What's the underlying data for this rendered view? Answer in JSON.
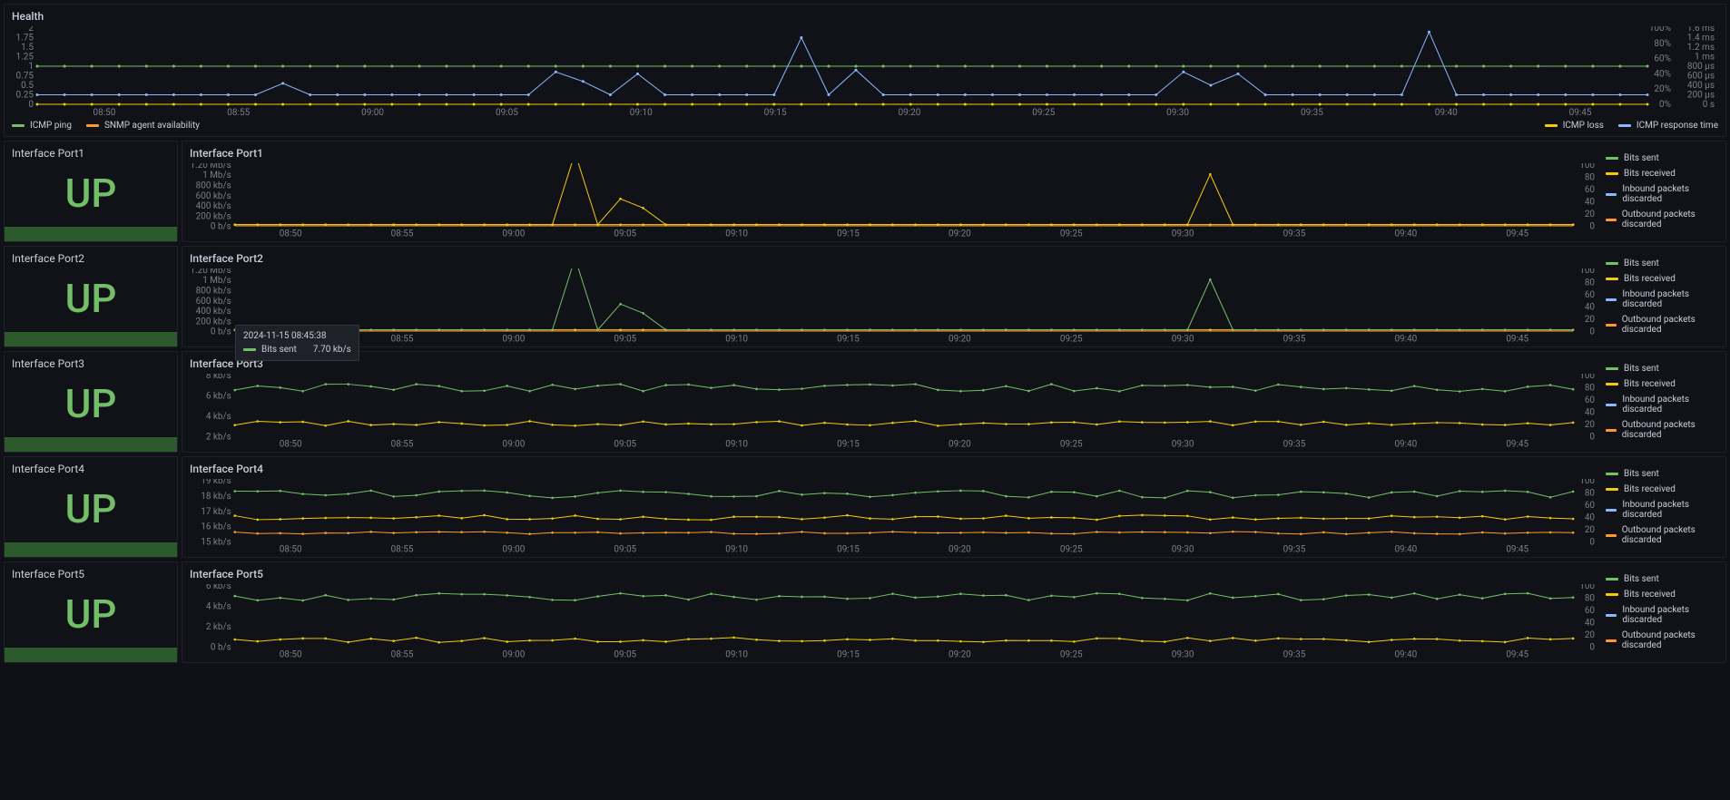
{
  "colors": {
    "bg": "#0f1116",
    "panel": "#111217",
    "grid": "#2a2d37",
    "text": "#ccccdc",
    "axis": "#7b7f8c",
    "green": "#73bf69",
    "orange": "#ff9830",
    "blue": "#8ab8ff",
    "yellow": "#f2cc0c",
    "status_bar": "#2d5a2d"
  },
  "health": {
    "title": "Health",
    "left_axis": {
      "ticks": [
        "2",
        "1.75",
        "1.5",
        "1.25",
        "1",
        "0.75",
        "0.5",
        "0.25",
        "0"
      ]
    },
    "right_axis1": {
      "ticks": [
        "100%",
        "80%",
        "60%",
        "40%",
        "20%",
        "0%"
      ]
    },
    "right_axis2": {
      "ticks": [
        "1.6 ms",
        "1.4 ms",
        "1.2 ms",
        "1 ms",
        "800 µs",
        "600 µs",
        "400 µs",
        "200 µs",
        "0 s"
      ]
    },
    "x_ticks": [
      "08:50",
      "08:55",
      "09:00",
      "09:05",
      "09:10",
      "09:15",
      "09:20",
      "09:25",
      "09:30",
      "09:35",
      "09:40",
      "09:45"
    ],
    "legend": [
      {
        "label": "ICMP ping",
        "color": "#73bf69"
      },
      {
        "label": "SNMP agent availability",
        "color": "#ff9830"
      }
    ],
    "legend_right": [
      {
        "label": "ICMP loss",
        "color": "#f2cc0c"
      },
      {
        "label": "ICMP response time",
        "color": "#8ab8ff"
      }
    ],
    "series": {
      "ping": {
        "color": "#73bf69",
        "value": 1.0
      },
      "snmp": {
        "color": "#ff9830",
        "value": 1.0
      },
      "loss": {
        "color": "#f2cc0c",
        "value": 0.0
      },
      "response": {
        "color": "#8ab8ff",
        "baseline": 0.25,
        "spikes": [
          {
            "x": 0.145,
            "y": 0.55
          },
          {
            "x": 0.32,
            "y": 0.85
          },
          {
            "x": 0.345,
            "y": 0.6
          },
          {
            "x": 0.37,
            "y": 0.8
          },
          {
            "x": 0.475,
            "y": 1.75
          },
          {
            "x": 0.505,
            "y": 0.9
          },
          {
            "x": 0.715,
            "y": 0.85
          },
          {
            "x": 0.73,
            "y": 0.5
          },
          {
            "x": 0.745,
            "y": 0.8
          },
          {
            "x": 0.87,
            "y": 1.9
          }
        ]
      }
    }
  },
  "ports": [
    {
      "id": "Port1",
      "status_title": "Interface Port1",
      "status_value": "UP",
      "chart_title": "Interface Port1",
      "left_ticks": [
        "1.20 Mb/s",
        "1 Mb/s",
        "800 kb/s",
        "600 kb/s",
        "400 kb/s",
        "200 kb/s",
        "0 b/s"
      ],
      "right_ticks": [
        "100",
        "80",
        "60",
        "40",
        "20",
        "0"
      ],
      "x_ticks": [
        "08:50",
        "08:55",
        "09:00",
        "09:05",
        "09:10",
        "09:15",
        "09:20",
        "09:25",
        "09:30",
        "09:35",
        "09:40",
        "09:45"
      ],
      "series_colors": {
        "sent": "#73bf69",
        "received": "#f2cc0c",
        "in_disc": "#8ab8ff",
        "out_disc": "#ff9830"
      },
      "spike_color": "#f2cc0c",
      "spikes": [
        {
          "x": 0.25,
          "h": 1.2
        },
        {
          "x": 0.295,
          "h": 0.45
        },
        {
          "x": 0.31,
          "h": 0.3
        },
        {
          "x": 0.73,
          "h": 0.85
        }
      ]
    },
    {
      "id": "Port2",
      "status_title": "Interface Port2",
      "status_value": "UP",
      "chart_title": "Interface Port2",
      "left_ticks": [
        "1.20 Mb/s",
        "1 Mb/s",
        "800 kb/s",
        "600 kb/s",
        "400 kb/s",
        "200 kb/s",
        "0 b/s"
      ],
      "right_ticks": [
        "100",
        "80",
        "60",
        "40",
        "20",
        "0"
      ],
      "x_ticks": [
        "08:50",
        "08:55",
        "09:00",
        "09:05",
        "09:10",
        "09:15",
        "09:20",
        "09:25",
        "09:30",
        "09:35",
        "09:40",
        "09:45"
      ],
      "series_colors": {
        "sent": "#73bf69",
        "received": "#f2cc0c",
        "in_disc": "#8ab8ff",
        "out_disc": "#ff9830"
      },
      "spike_color": "#73bf69",
      "spikes": [
        {
          "x": 0.25,
          "h": 1.2
        },
        {
          "x": 0.295,
          "h": 0.45
        },
        {
          "x": 0.31,
          "h": 0.3
        },
        {
          "x": 0.73,
          "h": 0.85
        }
      ],
      "tooltip": {
        "timestamp": "2024-11-15 08:45:38",
        "items": [
          {
            "label": "Bits sent",
            "value": "7.70 kb/s",
            "color": "#73bf69"
          }
        ]
      }
    },
    {
      "id": "Port3",
      "status_title": "Interface Port3",
      "status_value": "UP",
      "chart_title": "Interface Port3",
      "left_ticks": [
        "8 kb/s",
        "6 kb/s",
        "4 kb/s",
        "2 kb/s"
      ],
      "right_ticks": [
        "100",
        "80",
        "60",
        "40",
        "20",
        "0"
      ],
      "x_ticks": [
        "08:50",
        "08:55",
        "09:00",
        "09:05",
        "09:10",
        "09:15",
        "09:20",
        "09:25",
        "09:30",
        "09:35",
        "09:40",
        "09:45"
      ],
      "series_colors": {
        "sent": "#73bf69",
        "received": "#f2cc0c",
        "in_disc": "#8ab8ff",
        "out_disc": "#ff9830"
      },
      "bands": {
        "sent_y": 0.2,
        "received_y": 0.78
      }
    },
    {
      "id": "Port4",
      "status_title": "Interface Port4",
      "status_value": "UP",
      "chart_title": "Interface Port4",
      "left_ticks": [
        "19 kb/s",
        "18 kb/s",
        "17 kb/s",
        "16 kb/s",
        "15 kb/s"
      ],
      "right_ticks": [
        "100",
        "80",
        "60",
        "40",
        "20",
        "0"
      ],
      "x_ticks": [
        "08:50",
        "08:55",
        "09:00",
        "09:05",
        "09:10",
        "09:15",
        "09:20",
        "09:25",
        "09:30",
        "09:35",
        "09:40",
        "09:45"
      ],
      "series_colors": {
        "sent": "#73bf69",
        "received": "#f2cc0c",
        "in_disc": "#8ab8ff",
        "out_disc": "#ff9830"
      },
      "bands": {
        "sent_y": 0.22,
        "received_y": 0.6,
        "extra_y": 0.85,
        "extra_color": "#ff9830"
      }
    },
    {
      "id": "Port5",
      "status_title": "Interface Port5",
      "status_value": "UP",
      "chart_title": "Interface Port5",
      "left_ticks": [
        "6 kb/s",
        "4 kb/s",
        "2 kb/s",
        "0 b/s"
      ],
      "right_ticks": [
        "100",
        "80",
        "60",
        "40",
        "20",
        "0"
      ],
      "x_ticks": [
        "08:50",
        "08:55",
        "09:00",
        "09:05",
        "09:10",
        "09:15",
        "09:20",
        "09:25",
        "09:30",
        "09:35",
        "09:40",
        "09:45"
      ],
      "series_colors": {
        "sent": "#73bf69",
        "received": "#f2cc0c",
        "in_disc": "#8ab8ff",
        "out_disc": "#ff9830"
      },
      "bands": {
        "sent_y": 0.18,
        "received_y": 0.88
      }
    }
  ],
  "traffic_legend": [
    {
      "label": "Bits sent",
      "color": "#73bf69"
    },
    {
      "label": "Bits received",
      "color": "#f2cc0c"
    },
    {
      "label": "Inbound packets discarded",
      "color": "#8ab8ff"
    },
    {
      "label": "Outbound packets discarded",
      "color": "#ff9830"
    }
  ]
}
